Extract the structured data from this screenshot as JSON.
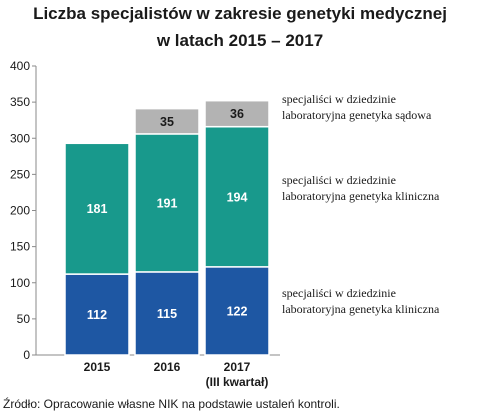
{
  "chart_data": {
    "type": "bar",
    "stacked": true,
    "title_line1": "Liczba specjalistów w zakresie genetyki medycznej",
    "title_line2": "w latach 2015 – 2017",
    "categories": [
      "2015",
      "2016",
      "2017"
    ],
    "category_sublabels": [
      "",
      "",
      "(III kwartał)"
    ],
    "yticks": [
      "0",
      "50",
      "100",
      "150",
      "200",
      "250",
      "300",
      "350",
      "400"
    ],
    "ylim": [
      0,
      400
    ],
    "grid": false,
    "series": [
      {
        "name": "specjaliści w dziedzinie laboratoryjna genetyka kliniczna",
        "name_line1": "specjaliści w dziedzinie",
        "name_line2": "laboratoryjna genetyka kliniczna",
        "color": "#1e57a3",
        "values": [
          112,
          115,
          122
        ],
        "labels": [
          "112",
          "115",
          "122"
        ]
      },
      {
        "name": "specjaliści w dziedzinie laboratoryjna genetyka kliniczna",
        "name_line1": "specjaliści w dziedzinie",
        "name_line2": "laboratoryjna genetyka kliniczna",
        "color": "#18998c",
        "values": [
          181,
          191,
          194
        ],
        "labels": [
          "181",
          "191",
          "194"
        ]
      },
      {
        "name": "specjaliści w dziedzinie laboratoryjna genetyka sądowa",
        "name_line1": "specjaliści w dziedzinie",
        "name_line2": "laboratoryjna genetyka sądowa",
        "color": "#b3b3b3",
        "values": [
          0,
          35,
          36
        ],
        "labels": [
          "",
          "35",
          "36"
        ]
      }
    ],
    "legend_placement": "right"
  },
  "source": "Źródło: Opracowanie własne NIK na podstawie ustaleń kontroli."
}
